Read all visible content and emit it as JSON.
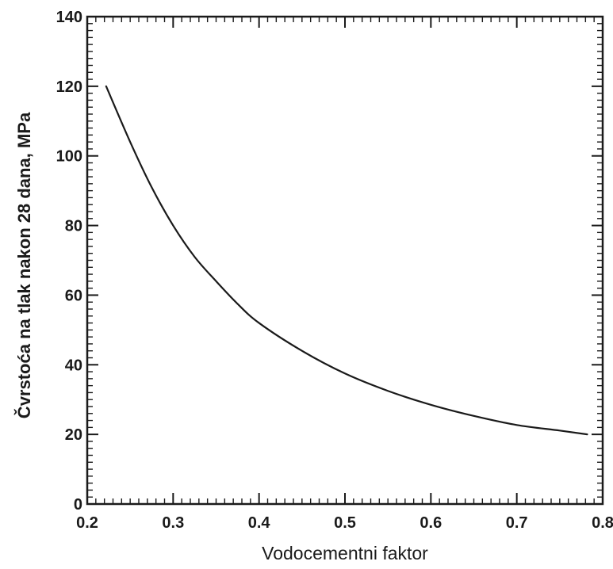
{
  "chart_data": {
    "type": "line",
    "title": "",
    "xlabel": "Vodocementni faktor",
    "ylabel": "Čvrstoća na tlak nakon 28 dana, MPa",
    "xlim": [
      0.2,
      0.8
    ],
    "ylim": [
      0,
      140
    ],
    "x_ticks": [
      "0.2",
      "0.3",
      "0.4",
      "0.5",
      "0.6",
      "0.7",
      "0.8"
    ],
    "y_ticks": [
      "0",
      "20",
      "40",
      "60",
      "80",
      "100",
      "120",
      "140"
    ],
    "grid": false,
    "legend": "none",
    "series": [
      {
        "color": "#1a1a1a",
        "x": [
          0.222,
          0.25,
          0.275,
          0.3,
          0.325,
          0.35,
          0.375,
          0.4,
          0.45,
          0.5,
          0.55,
          0.6,
          0.65,
          0.7,
          0.75,
          0.782
        ],
        "y": [
          120,
          104,
          91,
          80,
          71,
          64,
          57.5,
          52,
          44,
          37.5,
          32.5,
          28.5,
          25.3,
          22.7,
          21.1,
          20
        ]
      }
    ]
  }
}
